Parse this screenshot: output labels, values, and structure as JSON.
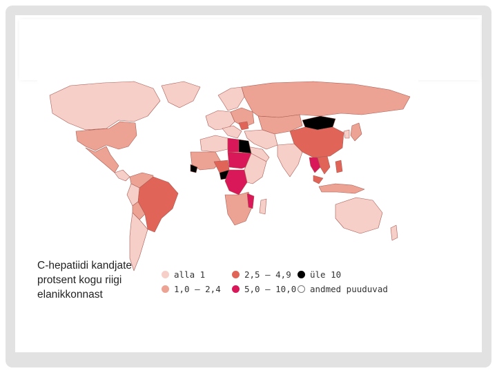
{
  "map": {
    "legend_title_lines": [
      "C-hepatiidi kandjate",
      "protsent kogu riigi",
      "elanikkonnast"
    ],
    "categories": [
      {
        "key": "lt1",
        "label": "alla 1",
        "color": "#f5cfc8",
        "outline": false
      },
      {
        "key": "1to2",
        "label": "1,0 – 2,4",
        "color": "#eda393",
        "outline": false
      },
      {
        "key": "2to5",
        "label": "2,5 – 4,9",
        "color": "#e06458",
        "outline": false
      },
      {
        "key": "5to10",
        "label": "5,0 – 10,0",
        "color": "#d81858",
        "outline": false
      },
      {
        "key": "gt10",
        "label": "üle 10",
        "color": "#000000",
        "outline": false
      },
      {
        "key": "nodata",
        "label": "andmed puuduvad",
        "color": "#ffffff",
        "outline": true
      }
    ],
    "ocean_color": "#ffffff",
    "border_color": "#a85a52"
  }
}
